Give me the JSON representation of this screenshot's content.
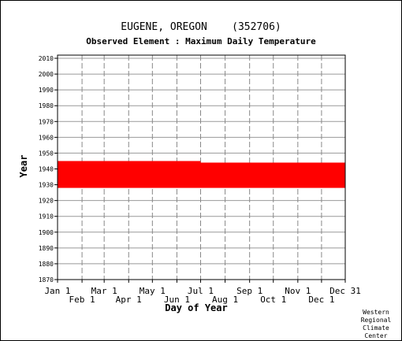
{
  "chart_data": {
    "type": "area",
    "title": "EUGENE, OREGON    (352706)",
    "subtitle": "Observed Element : Maximum Daily Temperature",
    "xlabel": "Day of Year",
    "ylabel": "Year",
    "ylim": [
      1870,
      2012
    ],
    "yticks": [
      1870,
      1880,
      1890,
      1900,
      1910,
      1920,
      1930,
      1940,
      1950,
      1960,
      1970,
      1980,
      1990,
      2000,
      2010
    ],
    "xlim": [
      1,
      365
    ],
    "xticks_top": [
      {
        "label": "Jan 1",
        "day": 1
      },
      {
        "label": "Mar 1",
        "day": 60
      },
      {
        "label": "May 1",
        "day": 121
      },
      {
        "label": "Jul 1",
        "day": 182
      },
      {
        "label": "Sep 1",
        "day": 244
      },
      {
        "label": "Nov 1",
        "day": 305
      },
      {
        "label": "Dec 31",
        "day": 365
      }
    ],
    "xticks_bottom": [
      {
        "label": "Feb 1",
        "day": 32
      },
      {
        "label": "Apr 1",
        "day": 91
      },
      {
        "label": "Jun 1",
        "day": 152
      },
      {
        "label": "Aug 1",
        "day": 213
      },
      {
        "label": "Oct 1",
        "day": 274
      },
      {
        "label": "Dec 1",
        "day": 335
      }
    ],
    "grid": true,
    "series": [
      {
        "color": "#ff0000",
        "segments": [
          {
            "day_start": 1,
            "day_end": 182,
            "year_start": 1928,
            "year_end": 1945
          },
          {
            "day_start": 182,
            "day_end": 365,
            "year_start": 1928,
            "year_end": 1944
          }
        ]
      }
    ]
  },
  "credit": [
    "Western",
    "Regional",
    "Climate",
    "Center"
  ]
}
